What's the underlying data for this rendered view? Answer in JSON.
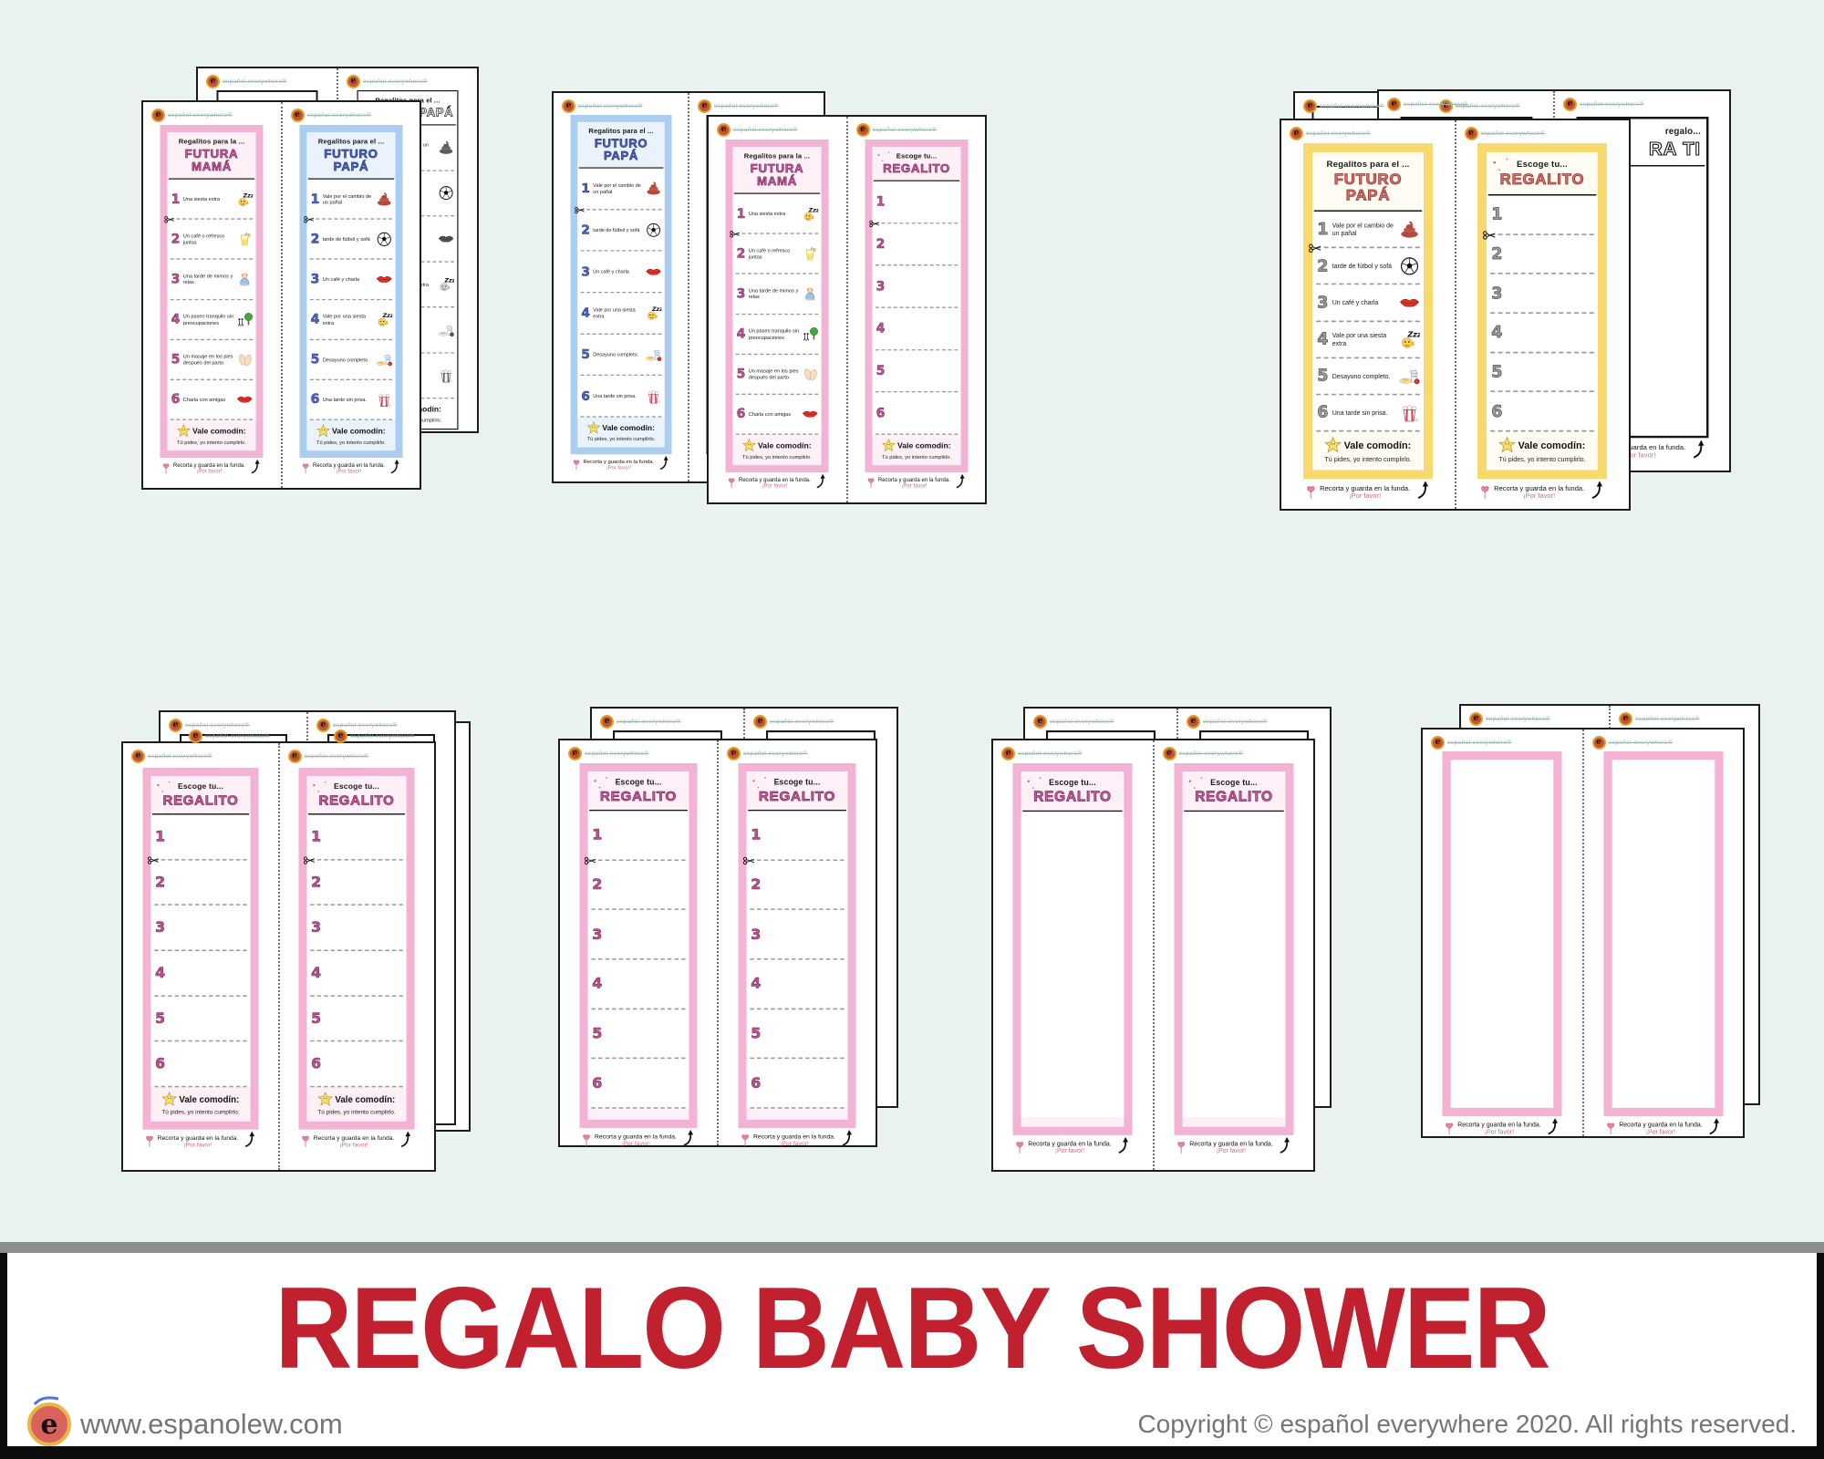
{
  "canvas": {
    "bg": "#e9f2ef"
  },
  "brand": {
    "watermark": "español everywhere®"
  },
  "strings": {
    "mama_h1": "Regalitos para la ...",
    "mama_h2": "FUTURA MAMÁ",
    "papa_h1": "Regalitos para el ...",
    "papa_h2": "FUTURO PAPÁ",
    "choose_h1": "Escoge tu...",
    "choose_h2": "REGALITO",
    "giftback_h1": "regalo...",
    "giftback_h2": "RA TI",
    "wildcard": "Vale comodín:",
    "wildcard_sub": "Tú pides, yo intento cumplirlo.",
    "cut1": "Recorta y guarda en la funda.",
    "cut2": "¡Por favor!"
  },
  "numbers": [
    "1",
    "2",
    "3",
    "4",
    "5",
    "6"
  ],
  "items": {
    "mama": [
      {
        "n": "1",
        "t": "Una siesta extra",
        "icon": "sleep-emoji"
      },
      {
        "n": "2",
        "t": "Un café o refresco juntas",
        "icon": "lemonade-glass"
      },
      {
        "n": "3",
        "t": "Una tarde de mimos y relax",
        "icon": "relax-person"
      },
      {
        "n": "4",
        "t": "Un paseo tranquilo sin preocupaciones",
        "icon": "walk-tree"
      },
      {
        "n": "5",
        "t": "Un masaje en los pies después del parto",
        "icon": "feet"
      },
      {
        "n": "6",
        "t": "Charla con amigas",
        "icon": "lips"
      }
    ],
    "papa": [
      {
        "n": "1",
        "t": "Vale por el cambio de un pañal",
        "icon": "poop"
      },
      {
        "n": "2",
        "t": "tarde de fútbol y sofá",
        "icon": "soccer-ball"
      },
      {
        "n": "3",
        "t": "Un café y charla",
        "icon": "lips"
      },
      {
        "n": "4",
        "t": "Vale por una siesta extra",
        "icon": "sleep-emoji"
      },
      {
        "n": "5",
        "t": "Desayuno completo.",
        "icon": "breakfast"
      },
      {
        "n": "6",
        "t": "Una tarde sin prisa.",
        "icon": "popcorn"
      }
    ]
  },
  "pages": [
    {
      "id": "g1-back",
      "sheets": [
        {
          "card": "outline"
        },
        {
          "card": "papaBW"
        }
      ]
    },
    {
      "id": "g1-front",
      "sheets": [
        {
          "card": "mama",
          "funda": true
        },
        {
          "card": "papaBlue",
          "funda": true
        }
      ]
    },
    {
      "id": "g2-back",
      "sheets": [
        {
          "card": "papaBlue",
          "funda": true
        },
        {
          "card": "outline"
        }
      ]
    },
    {
      "id": "g2-front",
      "sheets": [
        {
          "card": "mama",
          "funda": true
        },
        {
          "card": "chooseFull",
          "funda": true
        }
      ]
    },
    {
      "id": "g3-back2",
      "sheets": [
        {
          "card": "outline"
        },
        {
          "card": "outline"
        }
      ]
    },
    {
      "id": "g3-back1",
      "sheets": [
        {
          "card": "outline"
        },
        {
          "card": "giftBack",
          "funda": true
        }
      ]
    },
    {
      "id": "g3-front",
      "sheets": [
        {
          "card": "papaYellow",
          "funda": true
        },
        {
          "card": "chooseYellow",
          "funda": true
        }
      ]
    },
    {
      "id": "b1-back2",
      "sheets": [
        {
          "card": "outline"
        },
        {
          "card": "outline"
        }
      ]
    },
    {
      "id": "b1-back1",
      "sheets": [
        {
          "card": "outline"
        },
        {
          "card": "outline"
        }
      ]
    },
    {
      "id": "b1-front",
      "sheets": [
        {
          "card": "chooseFull",
          "funda": true
        },
        {
          "card": "chooseFull",
          "funda": true
        }
      ]
    },
    {
      "id": "b2-back",
      "sheets": [
        {
          "card": "outline"
        },
        {
          "card": "outline"
        }
      ]
    },
    {
      "id": "b2-front",
      "sheets": [
        {
          "card": "chooseNumbers",
          "funda": true
        },
        {
          "card": "chooseNumbers",
          "funda": true
        }
      ]
    },
    {
      "id": "b3-back",
      "sheets": [
        {
          "card": "outline"
        },
        {
          "card": "outline"
        }
      ]
    },
    {
      "id": "b3-front",
      "sheets": [
        {
          "card": "chooseBlank",
          "funda": true
        },
        {
          "card": "chooseBlank",
          "funda": true
        }
      ]
    },
    {
      "id": "b4-back",
      "sheets": [
        {
          "card": "outline"
        },
        {
          "card": "outline"
        }
      ]
    },
    {
      "id": "b4-front",
      "sheets": [
        {
          "card": "frameBlank",
          "funda": true
        },
        {
          "card": "frameBlank",
          "funda": true
        }
      ]
    }
  ],
  "colors": {
    "pink_frame": "#f2b3d4",
    "pink_tint": "#fdf0f7",
    "pink_title": "#c95f9f",
    "pink_stroke": "#7c2c5c",
    "pink_number": "#b8538f",
    "blue_frame": "#aacdf0",
    "blue_tint": "#eaf2fb",
    "blue_title": "#4d66c4",
    "blue_stroke": "#263678",
    "yellow_frame": "#f8d96d",
    "yellow_tint": "#fffdf3",
    "coral_title": "#e0716b",
    "coral_stroke": "#8f3734",
    "gray_number": "#9b9b9b",
    "gray_stroke": "#4a4a4a",
    "ink": "#1a1a1a",
    "funda_pink": "#d06a8c",
    "bg": "#e9f2ef",
    "divider_gray": "#8d8d8d",
    "title_red": "#c1202e",
    "footer_gray": "#757575"
  },
  "footer": {
    "title": "REGALO BABY SHOWER",
    "website": "www.espanolew.com",
    "copyright": "Copyright © español everywhere 2020. All rights reserved.",
    "logo_letter": "e"
  }
}
